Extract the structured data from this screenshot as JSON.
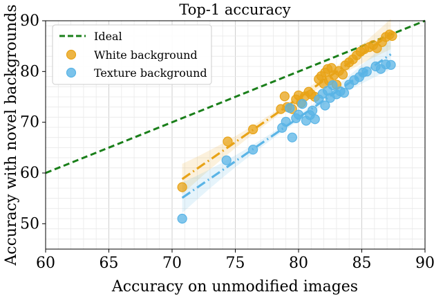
{
  "chart_data": {
    "type": "scatter",
    "title": "Top-1 accuracy",
    "xlabel": "Accuracy on unmodified images",
    "ylabel": "Accuracy with novel backgrounds",
    "xlim": [
      60,
      90
    ],
    "ylim": [
      45,
      90
    ],
    "xticks": [
      60,
      65,
      70,
      75,
      80,
      85,
      90
    ],
    "yticks": [
      50,
      60,
      70,
      80,
      90
    ],
    "grid": true,
    "legend_position": "top-left",
    "ideal": {
      "name": "Ideal",
      "color": "#1a7f1a",
      "style": "dashed",
      "points": [
        [
          60,
          60
        ],
        [
          90,
          90
        ]
      ]
    },
    "series": [
      {
        "name": "White background",
        "color": "#e8a317",
        "fit": {
          "x": [
            70.8,
            87.3
          ],
          "y": [
            58.8,
            87.4
          ]
        },
        "points": [
          [
            70.8,
            57.2
          ],
          [
            74.4,
            66.2
          ],
          [
            76.4,
            68.6
          ],
          [
            78.6,
            72.6
          ],
          [
            78.9,
            75.1
          ],
          [
            79.1,
            73.0
          ],
          [
            79.5,
            72.6
          ],
          [
            79.8,
            74.5
          ],
          [
            80.0,
            75.3
          ],
          [
            80.2,
            73.8
          ],
          [
            80.5,
            75.1
          ],
          [
            80.8,
            76.0
          ],
          [
            81.0,
            75.5
          ],
          [
            81.3,
            75.0
          ],
          [
            81.6,
            78.5
          ],
          [
            81.8,
            79.1
          ],
          [
            82.0,
            77.6
          ],
          [
            82.1,
            79.8
          ],
          [
            82.3,
            80.5
          ],
          [
            82.4,
            78.2
          ],
          [
            82.6,
            80.7
          ],
          [
            82.8,
            79.3
          ],
          [
            83.0,
            77.4
          ],
          [
            83.2,
            80.1
          ],
          [
            83.5,
            79.4
          ],
          [
            83.7,
            81.2
          ],
          [
            84.0,
            81.8
          ],
          [
            84.3,
            82.4
          ],
          [
            84.6,
            83.2
          ],
          [
            84.9,
            83.9
          ],
          [
            85.2,
            84.4
          ],
          [
            85.6,
            84.8
          ],
          [
            85.9,
            85.2
          ],
          [
            86.2,
            84.6
          ],
          [
            86.6,
            85.8
          ],
          [
            86.9,
            86.8
          ],
          [
            87.2,
            87.3
          ],
          [
            87.4,
            87.0
          ]
        ]
      },
      {
        "name": "Texture background",
        "color": "#5ab4e6",
        "fit": {
          "x": [
            70.8,
            87.3
          ],
          "y": [
            55.1,
            83.4
          ]
        },
        "points": [
          [
            70.8,
            51.0
          ],
          [
            74.3,
            62.5
          ],
          [
            76.4,
            64.6
          ],
          [
            78.7,
            68.9
          ],
          [
            79.0,
            70.1
          ],
          [
            79.3,
            72.8
          ],
          [
            79.5,
            67.0
          ],
          [
            79.8,
            70.8
          ],
          [
            80.0,
            71.5
          ],
          [
            80.3,
            73.6
          ],
          [
            80.6,
            70.3
          ],
          [
            80.9,
            71.4
          ],
          [
            81.1,
            72.3
          ],
          [
            81.3,
            70.6
          ],
          [
            81.6,
            74.5
          ],
          [
            81.9,
            75.6
          ],
          [
            82.1,
            73.3
          ],
          [
            82.3,
            76.2
          ],
          [
            82.5,
            74.8
          ],
          [
            82.7,
            77.3
          ],
          [
            83.0,
            75.5
          ],
          [
            83.3,
            76.1
          ],
          [
            83.6,
            75.8
          ],
          [
            84.0,
            77.4
          ],
          [
            84.4,
            78.3
          ],
          [
            84.8,
            78.9
          ],
          [
            85.1,
            79.8
          ],
          [
            85.4,
            80.0
          ],
          [
            86.1,
            81.0
          ],
          [
            86.5,
            80.5
          ],
          [
            86.9,
            81.4
          ],
          [
            87.3,
            81.3
          ]
        ]
      }
    ]
  }
}
